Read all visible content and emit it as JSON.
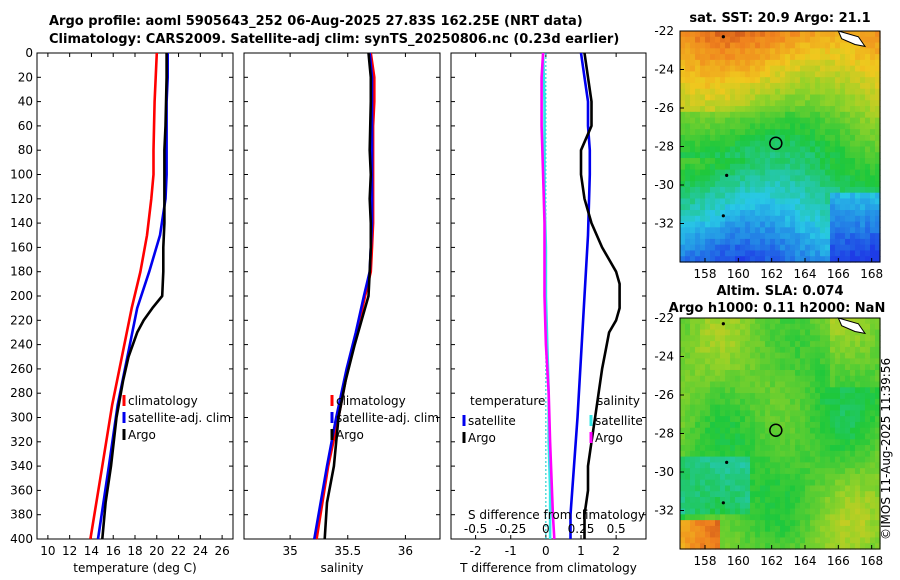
{
  "header": {
    "line1": "Argo profile: aoml 5905643_252 06-Aug-2025 27.83S 162.25E (NRT data)",
    "line2": "Climatology: CARS2009. Satellite-adj clim: synTS_20250806.nc (0.23d earlier)"
  },
  "stamp": "©IMOS 11-Aug-2025 11:39:56",
  "colors": {
    "climatology": "#ff0000",
    "satellite": "#0000ee",
    "argo": "#000000",
    "sal_satellite": "#33e6e6",
    "sal_argo": "#ff00ff",
    "zero_line": "#00cccc"
  },
  "chart_data": [
    {
      "id": "temperature",
      "type": "line",
      "xlabel": "temperature (deg C)",
      "ylabel": "",
      "xlim": [
        9,
        27
      ],
      "ylim": [
        0,
        400
      ],
      "xticks": [
        10,
        12,
        14,
        16,
        18,
        20,
        22,
        24,
        26
      ],
      "yticks": [
        0,
        20,
        40,
        60,
        80,
        100,
        120,
        140,
        160,
        180,
        200,
        220,
        240,
        260,
        280,
        300,
        320,
        340,
        360,
        380,
        400
      ],
      "legend": {
        "position": "center-left",
        "entries": [
          "climatology",
          "satellite-adj. clim",
          "Argo"
        ]
      },
      "series": [
        {
          "name": "climatology",
          "color": "#ff0000",
          "x": [
            20.0,
            19.9,
            19.8,
            19.7,
            19.7,
            19.5,
            19.1,
            18.5,
            17.7,
            16.8,
            15.9,
            15.0,
            13.9
          ],
          "y": [
            0,
            20,
            40,
            80,
            100,
            120,
            150,
            180,
            210,
            250,
            290,
            340,
            400
          ]
        },
        {
          "name": "satellite-adj. clim",
          "color": "#0000ee",
          "x": [
            21.0,
            21.0,
            20.9,
            20.9,
            20.9,
            20.8,
            20.3,
            19.3,
            18.2,
            17.3,
            16.4,
            15.6,
            14.6
          ],
          "y": [
            0,
            20,
            40,
            80,
            100,
            120,
            150,
            180,
            210,
            250,
            290,
            340,
            400
          ]
        },
        {
          "name": "Argo",
          "color": "#000000",
          "x": [
            20.9,
            20.9,
            20.8,
            20.7,
            20.7,
            20.7,
            20.6,
            20.6,
            20.5,
            19.6,
            18.8,
            18.2,
            17.4,
            16.9,
            16.3,
            15.8,
            15.3,
            15.0
          ],
          "y": [
            0,
            20,
            60,
            80,
            100,
            140,
            160,
            180,
            200,
            210,
            220,
            230,
            250,
            270,
            300,
            340,
            370,
            400
          ]
        }
      ]
    },
    {
      "id": "salinity",
      "type": "line",
      "xlabel": "salinity",
      "xlim": [
        34.6,
        36.3
      ],
      "ylim": [
        0,
        400
      ],
      "xticks": [
        35,
        35.5,
        36
      ],
      "legend": {
        "position": "center-right",
        "entries": [
          "climatology",
          "satellite-adj. clim",
          "Argo"
        ]
      },
      "series": [
        {
          "name": "climatology",
          "color": "#ff0000",
          "x": [
            35.7,
            35.73,
            35.73,
            35.72,
            35.72,
            35.72,
            35.71,
            35.7,
            35.65,
            35.58,
            35.5,
            35.42,
            35.33,
            35.23
          ],
          "y": [
            0,
            20,
            40,
            60,
            100,
            140,
            160,
            180,
            200,
            230,
            260,
            300,
            340,
            400
          ]
        },
        {
          "name": "satellite-adj. clim",
          "color": "#0000ee",
          "x": [
            35.69,
            35.71,
            35.71,
            35.71,
            35.71,
            35.71,
            35.7,
            35.69,
            35.64,
            35.57,
            35.49,
            35.4,
            35.32,
            35.21
          ],
          "y": [
            0,
            20,
            40,
            60,
            100,
            140,
            160,
            180,
            200,
            230,
            260,
            300,
            340,
            400
          ]
        },
        {
          "name": "Argo",
          "color": "#000000",
          "x": [
            35.68,
            35.7,
            35.7,
            35.69,
            35.7,
            35.69,
            35.7,
            35.7,
            35.69,
            35.68,
            35.62,
            35.56,
            35.48,
            35.42,
            35.38,
            35.32,
            35.3
          ],
          "y": [
            0,
            20,
            40,
            80,
            100,
            120,
            140,
            160,
            180,
            200,
            220,
            240,
            270,
            300,
            340,
            370,
            400
          ]
        }
      ]
    },
    {
      "id": "difference",
      "type": "line",
      "xlabel": "T difference from climatology",
      "top_label": "S difference from climatology",
      "xlim": [
        -2.7,
        2.85
      ],
      "ylim": [
        0,
        400
      ],
      "xticks": [
        -2,
        -1,
        0,
        1,
        2
      ],
      "s_xlim": [
        -0.675,
        0.7125
      ],
      "s_xticks": [
        -0.5,
        -0.25,
        0,
        0.25,
        0.5
      ],
      "s_xticklabels": [
        "-0.5",
        "-0.25",
        "0",
        "0.25",
        "0.5"
      ],
      "legend_t_title": "temperature",
      "legend_s_title": "salinity",
      "legend_entries": [
        "satellite",
        "Argo"
      ],
      "series": [
        {
          "name": "temperature satellite",
          "axis": "T",
          "color": "#0000ee",
          "x": [
            1.0,
            1.1,
            1.2,
            1.2,
            1.25,
            1.25,
            1.2,
            1.1,
            1.0,
            0.9,
            0.8,
            0.7,
            0.7
          ],
          "y": [
            0,
            20,
            40,
            60,
            80,
            100,
            150,
            200,
            250,
            300,
            340,
            380,
            400
          ]
        },
        {
          "name": "temperature Argo",
          "axis": "T",
          "color": "#000000",
          "x": [
            1.1,
            1.2,
            1.3,
            1.3,
            1.0,
            1.0,
            1.1,
            1.3,
            1.6,
            1.8,
            2.0,
            2.1,
            2.1,
            2.0,
            1.8,
            1.7,
            1.6,
            1.5,
            1.4,
            1.3,
            1.2,
            1.2,
            1.1,
            1.1
          ],
          "y": [
            0,
            20,
            40,
            60,
            80,
            100,
            120,
            140,
            160,
            170,
            180,
            190,
            210,
            220,
            230,
            245,
            260,
            280,
            300,
            320,
            340,
            360,
            380,
            400
          ]
        },
        {
          "name": "salinity satellite",
          "axis": "S",
          "color": "#33e6e6",
          "x": [
            -0.02,
            -0.01,
            -0.01,
            -0.01,
            0.0,
            0.0,
            0.01,
            0.02,
            0.02,
            0.03,
            0.03
          ],
          "y": [
            0,
            40,
            80,
            120,
            160,
            200,
            240,
            280,
            320,
            360,
            400
          ]
        },
        {
          "name": "salinity Argo",
          "axis": "S",
          "color": "#ff00ff",
          "x": [
            -0.02,
            -0.03,
            -0.03,
            -0.02,
            -0.01,
            -0.01,
            0.0,
            0.02,
            0.03,
            0.04,
            0.05,
            0.06
          ],
          "y": [
            0,
            20,
            60,
            100,
            140,
            200,
            240,
            280,
            320,
            350,
            380,
            400
          ]
        }
      ]
    },
    {
      "id": "sst_map",
      "type": "heatmap",
      "title": "sat. SST: 20.9 Argo: 21.1",
      "xlim": [
        156.5,
        168.5
      ],
      "ylim": [
        -34,
        -22
      ],
      "xticks": [
        158,
        160,
        162,
        164,
        166,
        168
      ],
      "yticks": [
        -22,
        -24,
        -26,
        -28,
        -30,
        -32
      ],
      "yticklabels": [
        "-22",
        "-24",
        "-26",
        "-28",
        "-30",
        "-32"
      ],
      "marker": {
        "lon": 162.25,
        "lat": -27.83
      }
    },
    {
      "id": "sla_map",
      "type": "heatmap",
      "title_line1": "Altim. SLA: 0.074",
      "title_line2": "Argo h1000: 0.11 h2000: NaN",
      "xlim": [
        156.5,
        168.5
      ],
      "ylim": [
        -34,
        -22
      ],
      "xticks": [
        158,
        160,
        162,
        164,
        166,
        168
      ],
      "yticks": [
        -22,
        -24,
        -26,
        -28,
        -30,
        -32
      ],
      "yticklabels": [
        "-22",
        "-24",
        "-26",
        "-28",
        "-30",
        "-32"
      ],
      "marker": {
        "lon": 162.25,
        "lat": -27.83
      }
    }
  ]
}
